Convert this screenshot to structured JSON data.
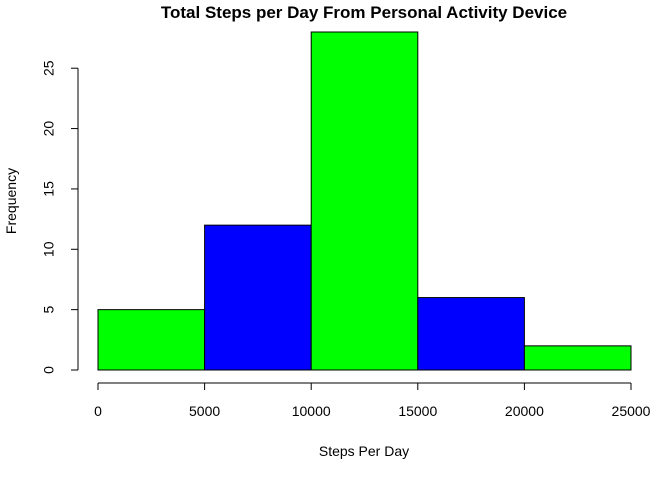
{
  "chart_data": {
    "type": "bar",
    "title": "Total Steps per Day From Personal Activity Device",
    "xlabel": "Steps Per Day",
    "ylabel": "Frequency",
    "bins": [
      {
        "start": 0,
        "end": 5000,
        "value": 5,
        "color": "#00FF00"
      },
      {
        "start": 5000,
        "end": 10000,
        "value": 12,
        "color": "#0000FF"
      },
      {
        "start": 10000,
        "end": 15000,
        "value": 28,
        "color": "#00FF00"
      },
      {
        "start": 15000,
        "end": 20000,
        "value": 6,
        "color": "#0000FF"
      },
      {
        "start": 20000,
        "end": 25000,
        "value": 2,
        "color": "#00FF00"
      }
    ],
    "xlim": [
      0,
      25000
    ],
    "ylim": [
      0,
      28
    ],
    "x_ticks": [
      0,
      5000,
      10000,
      15000,
      20000,
      25000
    ],
    "y_ticks": [
      0,
      5,
      10,
      15,
      20,
      25
    ],
    "grid": false,
    "legend": "none"
  }
}
